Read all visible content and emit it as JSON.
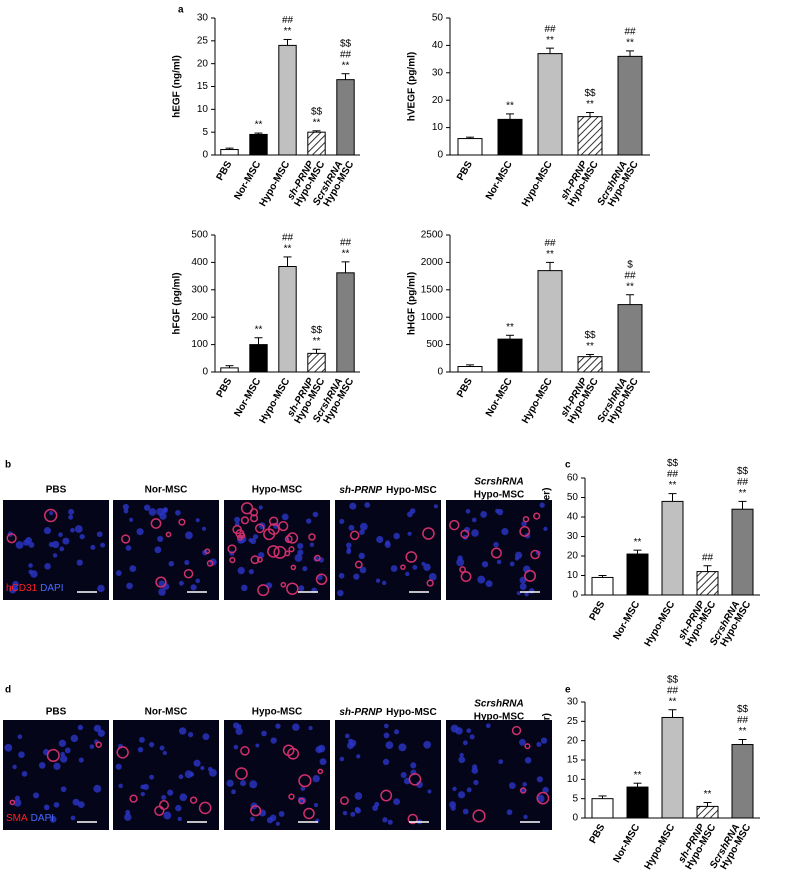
{
  "panel_labels": [
    "a",
    "b",
    "c",
    "d",
    "e"
  ],
  "chart_data": [
    {
      "type": "bar",
      "ylabel": "hEGF (ng/ml)",
      "categories": [
        "PBS",
        "Nor-MSC",
        "Hypo-MSC",
        [
          "sh-PRNP",
          "Hypo-MSC"
        ],
        [
          "ScrshRNA",
          "Hypo-MSC"
        ]
      ],
      "values": [
        1.2,
        4.5,
        24,
        5,
        16.5
      ],
      "errors": [
        0.3,
        0.3,
        1.3,
        0.3,
        1.3
      ],
      "colors": [
        "#ffffff",
        "#000000",
        "#c0c0c0",
        "#ffffff",
        "#808080"
      ],
      "hatched": [
        false,
        false,
        false,
        true,
        false
      ],
      "annotations": [
        [],
        [
          "**"
        ],
        [
          "##",
          "**"
        ],
        [
          "$$",
          "**"
        ],
        [
          "$$",
          "##",
          "**"
        ]
      ],
      "ylim": [
        0,
        30
      ],
      "yticks": [
        0,
        5,
        10,
        15,
        20,
        25,
        30
      ]
    },
    {
      "type": "bar",
      "ylabel": "hVEGF (pg/ml)",
      "categories": [
        "PBS",
        "Nor-MSC",
        "Hypo-MSC",
        [
          "sh-PRNP",
          "Hypo-MSC"
        ],
        [
          "ScrshRNA",
          "Hypo-MSC"
        ]
      ],
      "values": [
        6,
        13,
        37,
        14,
        36
      ],
      "errors": [
        0.5,
        2,
        2,
        1.5,
        2
      ],
      "colors": [
        "#ffffff",
        "#000000",
        "#c0c0c0",
        "#ffffff",
        "#808080"
      ],
      "hatched": [
        false,
        false,
        false,
        true,
        false
      ],
      "annotations": [
        [],
        [
          "**"
        ],
        [
          "##",
          "**"
        ],
        [
          "$$",
          "**"
        ],
        [
          "##",
          "**"
        ]
      ],
      "ylim": [
        0,
        50
      ],
      "yticks": [
        0,
        10,
        20,
        30,
        40,
        50
      ]
    },
    {
      "type": "bar",
      "ylabel": "hFGF (pg/ml)",
      "categories": [
        "PBS",
        "Nor-MSC",
        "Hypo-MSC",
        [
          "sh-PRNP",
          "Hypo-MSC"
        ],
        [
          "ScrshRNA",
          "Hypo-MSC"
        ]
      ],
      "values": [
        15,
        100,
        385,
        68,
        362
      ],
      "errors": [
        8,
        25,
        35,
        15,
        40
      ],
      "colors": [
        "#ffffff",
        "#000000",
        "#c0c0c0",
        "#ffffff",
        "#808080"
      ],
      "hatched": [
        false,
        false,
        false,
        true,
        false
      ],
      "annotations": [
        [],
        [
          "**"
        ],
        [
          "##",
          "**"
        ],
        [
          "$$",
          "**"
        ],
        [
          "##",
          "**"
        ]
      ],
      "ylim": [
        0,
        500
      ],
      "yticks": [
        0,
        100,
        200,
        300,
        400,
        500
      ]
    },
    {
      "type": "bar",
      "ylabel": "hHGF (pg/ml)",
      "categories": [
        "PBS",
        "Nor-MSC",
        "Hypo-MSC",
        [
          "sh-PRNP",
          "Hypo-MSC"
        ],
        [
          "ScrshRNA",
          "Hypo-MSC"
        ]
      ],
      "values": [
        100,
        600,
        1850,
        280,
        1230
      ],
      "errors": [
        30,
        70,
        150,
        40,
        180
      ],
      "colors": [
        "#ffffff",
        "#000000",
        "#c0c0c0",
        "#ffffff",
        "#808080"
      ],
      "hatched": [
        false,
        false,
        false,
        true,
        false
      ],
      "annotations": [
        [],
        [
          "**"
        ],
        [
          "##",
          "**"
        ],
        [
          "$$",
          "**"
        ],
        [
          "$",
          "##",
          "**"
        ]
      ],
      "ylim": [
        0,
        2500
      ],
      "yticks": [
        0,
        500,
        1000,
        1500,
        2000,
        2500
      ]
    },
    {
      "type": "bar",
      "ylabel": "Capillaries (Number)",
      "categories": [
        "PBS",
        "Nor-MSC",
        "Hypo-MSC",
        [
          "sh-PRNP",
          "Hypo-MSC"
        ],
        [
          "ScrshRNA",
          "Hypo-MSC"
        ]
      ],
      "values": [
        9,
        21,
        48,
        12,
        44
      ],
      "errors": [
        1,
        2,
        4,
        3,
        4
      ],
      "colors": [
        "#ffffff",
        "#000000",
        "#c0c0c0",
        "#ffffff",
        "#808080"
      ],
      "hatched": [
        false,
        false,
        false,
        true,
        false
      ],
      "annotations": [
        [],
        [
          "**"
        ],
        [
          "$$",
          "##",
          "**"
        ],
        [
          "##"
        ],
        [
          "$$",
          "##",
          "**"
        ]
      ],
      "ylim": [
        0,
        60
      ],
      "yticks": [
        0,
        10,
        20,
        30,
        40,
        50,
        60
      ]
    },
    {
      "type": "bar",
      "ylabel": "Arterioles (Number)",
      "categories": [
        "PBS",
        "Nor-MSC",
        "Hypo-MSC",
        [
          "sh-PRNP",
          "Hypo-MSC"
        ],
        [
          "ScrshRNA",
          "Hypo-MSC"
        ]
      ],
      "values": [
        5,
        8,
        26,
        3,
        19
      ],
      "errors": [
        0.7,
        1,
        2,
        1,
        1.3
      ],
      "colors": [
        "#ffffff",
        "#000000",
        "#c0c0c0",
        "#ffffff",
        "#808080"
      ],
      "hatched": [
        false,
        false,
        false,
        true,
        false
      ],
      "annotations": [
        [],
        [
          "**"
        ],
        [
          "$$",
          "##",
          "**"
        ],
        [
          "**"
        ],
        [
          "$$",
          "##",
          "**"
        ]
      ],
      "ylim": [
        0,
        30
      ],
      "yticks": [
        0,
        5,
        10,
        15,
        20,
        25,
        30
      ]
    }
  ],
  "image_panels": [
    {
      "titles": [
        [
          "PBS"
        ],
        [
          "Nor-MSC"
        ],
        [
          "Hypo-MSC"
        ],
        [
          "sh-PRNP",
          "Hypo-MSC"
        ],
        [
          "ScrshRNA",
          "Hypo-MSC"
        ]
      ],
      "stain": [
        "hCD31",
        "DAPI"
      ]
    },
    {
      "titles": [
        [
          "PBS"
        ],
        [
          "Nor-MSC"
        ],
        [
          "Hypo-MSC"
        ],
        [
          "sh-PRNP",
          "Hypo-MSC"
        ],
        [
          "ScrshRNA",
          "Hypo-MSC"
        ]
      ],
      "stain": [
        "SMA",
        "DAPI"
      ]
    }
  ]
}
